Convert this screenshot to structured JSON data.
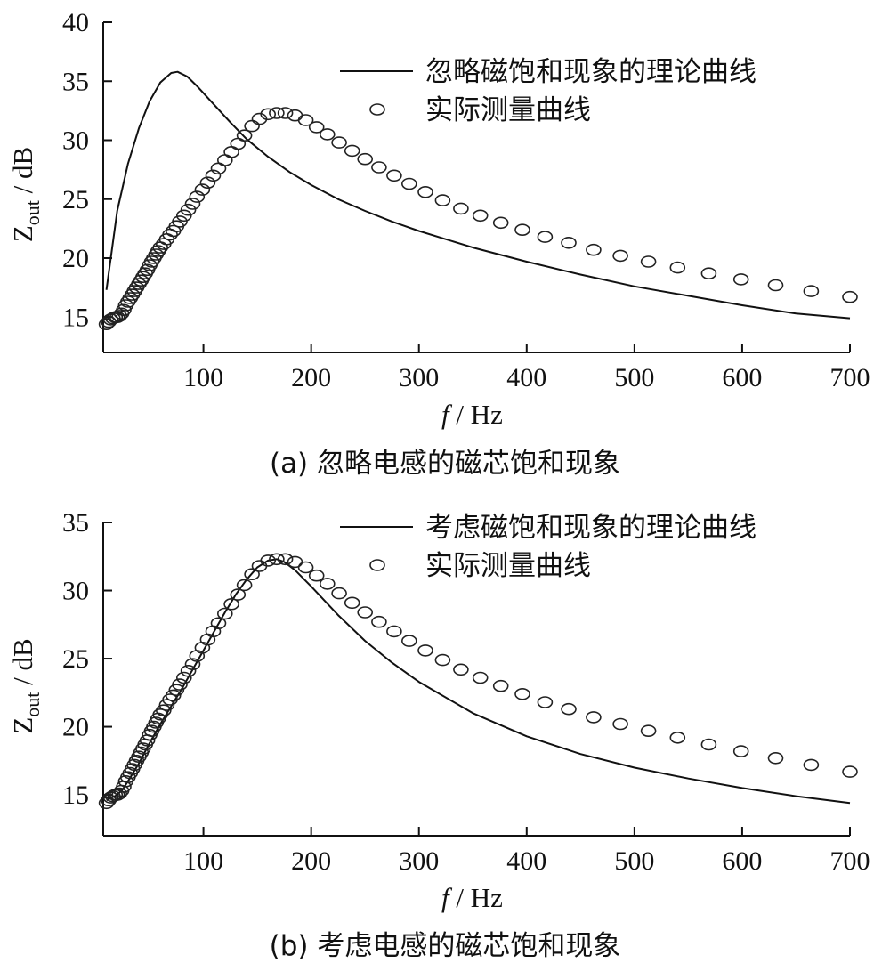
{
  "chart_data": [
    {
      "type": "line",
      "panel": "a",
      "caption": "(a) 忽略电感的磁芯饱和现象",
      "xlabel": "f / Hz",
      "ylabel": "Zout / dB",
      "xlim": [
        7,
        700
      ],
      "ylim": [
        12,
        40
      ],
      "xticks": [
        100,
        200,
        300,
        400,
        500,
        600,
        700
      ],
      "yticks": [
        15,
        20,
        25,
        30,
        35,
        40
      ],
      "legend_position": "top-right",
      "series": [
        {
          "name": "忽略磁饱和现象的理论曲线",
          "style": "line",
          "x": [
            10,
            20,
            30,
            40,
            50,
            60,
            70,
            76,
            85,
            95,
            110,
            125,
            140,
            160,
            180,
            200,
            225,
            250,
            275,
            300,
            350,
            400,
            450,
            500,
            550,
            600,
            650,
            700
          ],
          "y": [
            17.3,
            24.0,
            28.0,
            31.0,
            33.3,
            34.9,
            35.7,
            35.8,
            35.4,
            34.5,
            33.0,
            31.5,
            30.1,
            28.6,
            27.3,
            26.2,
            25.0,
            24.0,
            23.1,
            22.3,
            20.9,
            19.7,
            18.6,
            17.6,
            16.8,
            16.0,
            15.3,
            14.9
          ]
        },
        {
          "name": "实际测量曲线",
          "style": "markers",
          "x": [
            10,
            12,
            14,
            16,
            18,
            20,
            22,
            24,
            26,
            28,
            30,
            32,
            34,
            36,
            38,
            40,
            42,
            44,
            46,
            48,
            50,
            52,
            54,
            56,
            58,
            60,
            63,
            66,
            69,
            72,
            75,
            78,
            82,
            86,
            90,
            94,
            99,
            104,
            109,
            114,
            120,
            126,
            132,
            138,
            145,
            152,
            160,
            168,
            176,
            185,
            195,
            205,
            215,
            226,
            238,
            250,
            263,
            277,
            291,
            306,
            322,
            339,
            357,
            376,
            396,
            417,
            439,
            462,
            487,
            513,
            540,
            569,
            599,
            631,
            664,
            700
          ],
          "y": [
            14.4,
            14.6,
            14.8,
            14.9,
            15.0,
            15.0,
            15.1,
            15.3,
            15.6,
            16.0,
            16.3,
            16.6,
            16.9,
            17.2,
            17.5,
            17.8,
            18.1,
            18.4,
            18.7,
            19.0,
            19.4,
            19.7,
            20.0,
            20.3,
            20.6,
            20.9,
            21.2,
            21.6,
            22.0,
            22.3,
            22.7,
            23.1,
            23.6,
            24.1,
            24.6,
            25.2,
            25.8,
            26.4,
            27.0,
            27.6,
            28.3,
            29.0,
            29.7,
            30.4,
            31.2,
            31.8,
            32.2,
            32.3,
            32.3,
            32.1,
            31.7,
            31.1,
            30.5,
            29.8,
            29.1,
            28.4,
            27.7,
            27.0,
            26.3,
            25.6,
            24.9,
            24.2,
            23.6,
            23.0,
            22.4,
            21.8,
            21.3,
            20.7,
            20.2,
            19.7,
            19.2,
            18.7,
            18.2,
            17.7,
            17.2,
            16.7
          ]
        }
      ]
    },
    {
      "type": "line",
      "panel": "b",
      "caption": "(b) 考虑电感的磁芯饱和现象",
      "xlabel": "f / Hz",
      "ylabel": "Zout / dB",
      "xlim": [
        7,
        700
      ],
      "ylim": [
        12,
        35
      ],
      "xticks": [
        100,
        200,
        300,
        400,
        500,
        600,
        700
      ],
      "yticks": [
        15,
        20,
        25,
        30,
        35
      ],
      "legend_position": "top-right",
      "series": [
        {
          "name": "考虑磁饱和现象的理论曲线",
          "style": "line",
          "x": [
            10,
            15,
            20,
            25,
            30,
            40,
            50,
            60,
            70,
            80,
            90,
            100,
            110,
            120,
            130,
            140,
            150,
            160,
            168,
            175,
            185,
            200,
            225,
            250,
            275,
            300,
            350,
            400,
            450,
            500,
            550,
            600,
            650,
            700
          ],
          "y": [
            14.6,
            14.8,
            15.0,
            15.4,
            16.0,
            17.3,
            18.8,
            20.2,
            21.5,
            22.8,
            24.2,
            25.6,
            27.0,
            28.4,
            29.7,
            30.8,
            31.7,
            32.2,
            32.3,
            32.1,
            31.5,
            30.3,
            28.2,
            26.3,
            24.7,
            23.3,
            21.0,
            19.3,
            18.0,
            17.0,
            16.2,
            15.5,
            14.9,
            14.4
          ]
        },
        {
          "name": "实际测量曲线",
          "style": "markers",
          "x": [
            10,
            12,
            14,
            16,
            18,
            20,
            22,
            24,
            26,
            28,
            30,
            32,
            34,
            36,
            38,
            40,
            42,
            44,
            46,
            48,
            50,
            52,
            54,
            56,
            58,
            60,
            63,
            66,
            69,
            72,
            75,
            78,
            82,
            86,
            90,
            94,
            99,
            104,
            109,
            114,
            120,
            126,
            132,
            138,
            145,
            152,
            160,
            168,
            176,
            185,
            195,
            205,
            215,
            226,
            238,
            250,
            263,
            277,
            291,
            306,
            322,
            339,
            357,
            376,
            396,
            417,
            439,
            462,
            487,
            513,
            540,
            569,
            599,
            631,
            664,
            700
          ],
          "y": [
            14.4,
            14.6,
            14.8,
            14.9,
            15.0,
            15.0,
            15.1,
            15.3,
            15.6,
            16.0,
            16.3,
            16.6,
            16.9,
            17.2,
            17.5,
            17.8,
            18.1,
            18.4,
            18.7,
            19.0,
            19.4,
            19.7,
            20.0,
            20.3,
            20.6,
            20.9,
            21.2,
            21.6,
            22.0,
            22.3,
            22.7,
            23.1,
            23.6,
            24.1,
            24.6,
            25.2,
            25.8,
            26.4,
            27.0,
            27.6,
            28.3,
            29.0,
            29.7,
            30.4,
            31.2,
            31.8,
            32.2,
            32.3,
            32.3,
            32.1,
            31.7,
            31.1,
            30.5,
            29.8,
            29.1,
            28.4,
            27.7,
            27.0,
            26.3,
            25.6,
            24.9,
            24.2,
            23.6,
            23.0,
            22.4,
            21.8,
            21.3,
            20.7,
            20.2,
            19.7,
            19.2,
            18.7,
            18.2,
            17.7,
            17.2,
            16.7
          ]
        }
      ]
    }
  ]
}
